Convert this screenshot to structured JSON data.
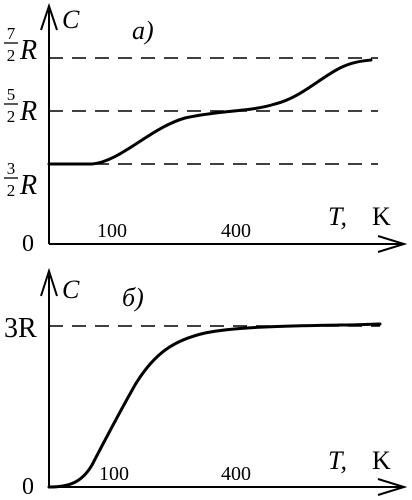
{
  "panel_a": {
    "y_label": "C",
    "panel_label": "а)",
    "level_7_2": {
      "num": "7",
      "den": "2",
      "sym": "R"
    },
    "level_5_2": {
      "num": "5",
      "den": "2",
      "sym": "R"
    },
    "level_3_2": {
      "num": "3",
      "den": "2",
      "sym": "R"
    },
    "origin": "0",
    "tick_100": "100",
    "tick_400": "400",
    "x_label": "T,",
    "x_unit": "K"
  },
  "panel_b": {
    "y_label": "C",
    "panel_label": "б)",
    "level_3R": "3R",
    "origin": "0",
    "tick_100": "100",
    "tick_400": "400",
    "x_label": "T,",
    "x_unit": "K"
  },
  "chart_data": [
    {
      "type": "line",
      "title": "",
      "xlabel": "T, K",
      "ylabel": "C",
      "panel": "а)",
      "x_ticks": [
        100,
        400
      ],
      "y_levels": [
        "3/2 R",
        "5/2 R",
        "7/2 R"
      ],
      "grid": false,
      "note_levels_dashed": true
    },
    {
      "type": "line",
      "title": "",
      "xlabel": "T, K",
      "ylabel": "C",
      "panel": "б)",
      "x_ticks": [
        100,
        400
      ],
      "y_levels": [
        "3R"
      ],
      "grid": false,
      "note_levels_dashed": true
    }
  ]
}
